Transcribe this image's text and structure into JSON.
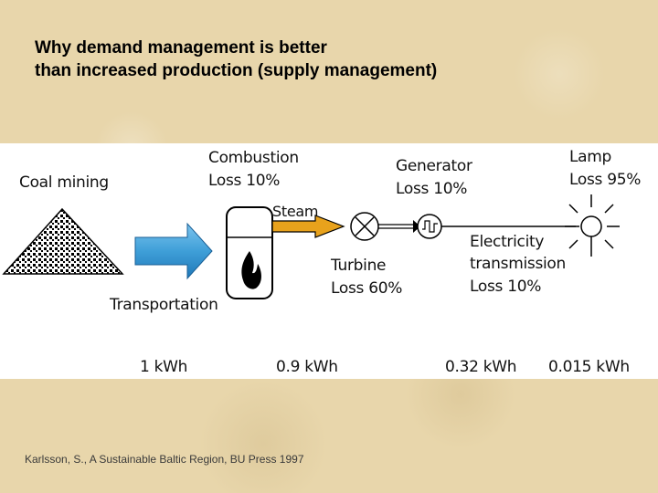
{
  "title": {
    "line1": "Why demand management is better",
    "line2": "than increased production (supply management)"
  },
  "diagram": {
    "coal_mining": "Coal mining",
    "transportation": "Transportation",
    "combustion": {
      "name": "Combustion",
      "loss": "Loss 10%"
    },
    "steam": "Steam",
    "generator": {
      "name": "Generator",
      "loss": "Loss 10%"
    },
    "lamp": {
      "name": "Lamp",
      "loss": "Loss 95%"
    },
    "turbine": {
      "name": "Turbine",
      "loss": "Loss 60%"
    },
    "transmission": {
      "name1": "Electricity",
      "name2": "transmission",
      "loss": "Loss 10%"
    },
    "energy": [
      "1 kWh",
      "0.9 kWh",
      "0.32 kWh",
      "0.015 kWh"
    ],
    "colors": {
      "arrow_blue": "#3f9fd8",
      "steam_orange": "#e8a21c",
      "flame": "#000000"
    }
  },
  "citation": "Karlsson, S., A Sustainable Baltic Region, BU Press 1997"
}
